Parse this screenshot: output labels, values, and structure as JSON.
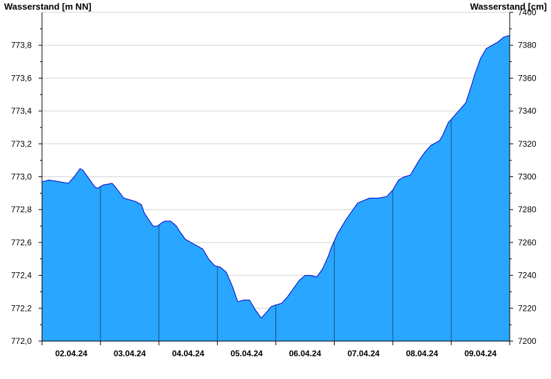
{
  "chart_data": {
    "type": "area",
    "title": "",
    "ylabel_left": "Wasserstand [m NN]",
    "ylabel_right": "Wasserstand [cm]",
    "ylim_left": [
      772.0,
      774.0
    ],
    "ylim_right": [
      7200,
      7400
    ],
    "y_ticks_left": [
      "772,0",
      "772,2",
      "772,4",
      "772,6",
      "772,8",
      "773,0",
      "773,2",
      "773,4",
      "773,6",
      "773,8"
    ],
    "y_ticks_right": [
      "7200",
      "7220",
      "7240",
      "7260",
      "7280",
      "7300",
      "7320",
      "7340",
      "7360",
      "7380",
      "7400"
    ],
    "x_labels": [
      "02.04.24",
      "03.04.24",
      "04.04.24",
      "05.04.24",
      "06.04.24",
      "07.04.24",
      "08.04.24",
      "09.04.24"
    ],
    "grid": "horizontal",
    "fill_color": "#29a6ff",
    "line_color": "#0000cc",
    "x_unit": "days since start of plotted period",
    "x_range": [
      0,
      8
    ],
    "series": [
      {
        "name": "Wasserstand",
        "x": [
          0,
          0.12,
          0.3,
          0.45,
          0.55,
          0.65,
          0.7,
          0.9,
          0.95,
          1.05,
          1.2,
          1.25,
          1.4,
          1.6,
          1.7,
          1.75,
          1.9,
          1.97,
          2.05,
          2.1,
          2.2,
          2.3,
          2.35,
          2.45,
          2.6,
          2.75,
          2.85,
          2.95,
          3.05,
          3.15,
          3.25,
          3.35,
          3.45,
          3.55,
          3.65,
          3.75,
          3.85,
          3.92,
          4.0,
          4.1,
          4.2,
          4.3,
          4.4,
          4.5,
          4.6,
          4.7,
          4.8,
          4.9,
          4.95,
          5.05,
          5.2,
          5.4,
          5.6,
          5.75,
          5.9,
          6.0,
          6.1,
          6.2,
          6.3,
          6.45,
          6.55,
          6.65,
          6.7,
          6.8,
          6.85,
          6.95,
          7.05,
          7.15,
          7.25,
          7.35,
          7.4,
          7.5,
          7.6,
          7.7,
          7.8,
          7.9,
          8.0
        ],
        "y_cm": [
          7297,
          7298,
          7297,
          7296,
          7300,
          7305,
          7304,
          7294,
          7293,
          7295,
          7296,
          7294,
          7287,
          7285,
          7283,
          7278,
          7270,
          7270,
          7272,
          7273,
          7273,
          7270,
          7267,
          7262,
          7259,
          7256,
          7250,
          7246,
          7245,
          7242,
          7234,
          7224,
          7225,
          7225,
          7219,
          7214,
          7218,
          7221,
          7222,
          7223,
          7227,
          7232,
          7237,
          7240,
          7240,
          7239,
          7244,
          7252,
          7257,
          7265,
          7274,
          7284,
          7287,
          7287,
          7288,
          7292,
          7298,
          7300,
          7301,
          7310,
          7315,
          7319,
          7320,
          7322,
          7325,
          7333,
          7337,
          7341,
          7345,
          7356,
          7362,
          7372,
          7378,
          7380,
          7382,
          7385,
          7386
        ]
      }
    ]
  }
}
